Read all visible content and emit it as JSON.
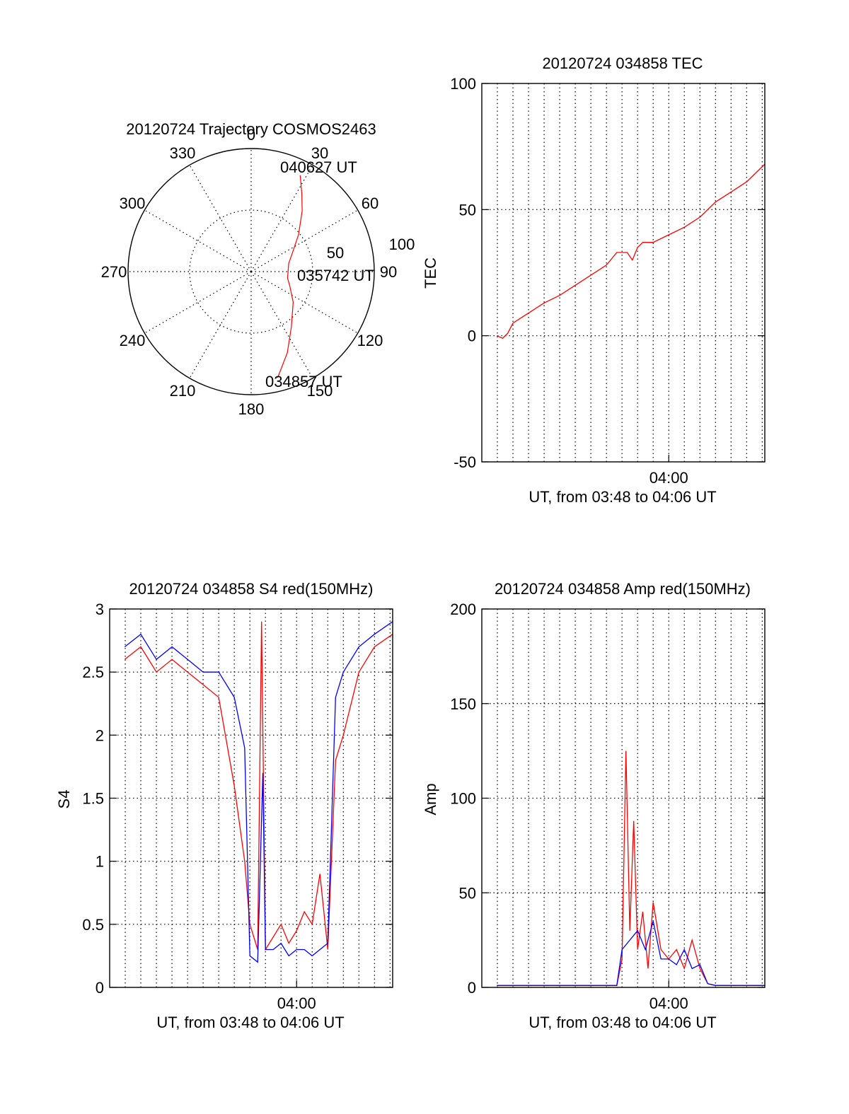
{
  "colors": {
    "red": "#ff0000",
    "blue": "#0000ff",
    "black": "#000000"
  },
  "chart_data": [
    {
      "id": "trajectory",
      "type": "polar",
      "title": "20120724 Trajectory COSMOS2463",
      "angle_labels": [
        "0",
        "30",
        "60",
        "90",
        "120",
        "150",
        "180",
        "210",
        "240",
        "270",
        "300",
        "330"
      ],
      "radial_labels": [
        "50",
        "100"
      ],
      "rlim": [
        0,
        100
      ],
      "grid": true,
      "start_label": "034857 UT",
      "mid_label": "035742 UT",
      "end_label": "040627 UT",
      "series": [
        {
          "color": "#ff0000",
          "points_az_el": [
            [
              166,
              10
            ],
            [
              156,
              25
            ],
            [
              144,
              40
            ],
            [
              126,
              52
            ],
            [
              110,
              60
            ],
            [
              100,
              63
            ],
            [
              90,
              63
            ],
            [
              78,
              62
            ],
            [
              64,
              56
            ],
            [
              52,
              46
            ],
            [
              40,
              32
            ],
            [
              33,
              22
            ],
            [
              27,
              11
            ]
          ]
        }
      ]
    },
    {
      "id": "tec",
      "type": "line",
      "title": "20120724 034858 TEC",
      "xlabel": "UT, from 03:48 to 04:06 UT",
      "ylabel": "TEC",
      "xlim": [
        "03:48:00",
        "04:06:10"
      ],
      "ylim": [
        -50,
        100
      ],
      "xtick_labels": [
        {
          "at": "04:00",
          "text": "04:00"
        }
      ],
      "ytick_labels": [
        "-50",
        "0",
        "50",
        "100"
      ],
      "grid": true,
      "series": [
        {
          "color": "#ff0000",
          "x": [
            "03:48:58",
            "03:49:20",
            "03:49:40",
            "03:50:00",
            "03:51:00",
            "03:52:00",
            "03:53:00",
            "03:54:00",
            "03:55:00",
            "03:56:00",
            "03:56:40",
            "03:57:20",
            "03:57:40",
            "03:58:00",
            "03:58:20",
            "03:58:40",
            "03:59:00",
            "04:00:00",
            "04:01:00",
            "04:02:00",
            "04:03:00",
            "04:04:00",
            "04:05:00",
            "04:06:10"
          ],
          "y": [
            0,
            -1,
            1,
            5,
            9,
            13,
            16,
            20,
            24,
            28,
            33,
            33,
            30,
            35,
            37,
            37,
            37,
            40,
            43,
            47,
            53,
            57,
            61,
            68
          ]
        }
      ]
    },
    {
      "id": "s4",
      "type": "line",
      "title": "20120724 034858 S4 red(150MHz)",
      "xlabel": "UT, from 03:48 to 04:06 UT",
      "ylabel": "S4",
      "xlim": [
        "03:48:00",
        "04:06:10"
      ],
      "ylim": [
        0,
        3
      ],
      "xtick_labels": [
        {
          "at": "04:00",
          "text": "04:00"
        }
      ],
      "ytick_labels": [
        "0",
        "0.5",
        "1",
        "1.5",
        "2",
        "2.5",
        "3"
      ],
      "grid": true,
      "series": [
        {
          "color": "#ff0000",
          "x": [
            "03:48:58",
            "03:50:00",
            "03:51:00",
            "03:52:00",
            "03:53:00",
            "03:54:00",
            "03:55:00",
            "03:56:00",
            "03:56:40",
            "03:57:00",
            "03:57:30",
            "03:57:45",
            "03:58:00",
            "03:58:30",
            "03:59:00",
            "03:59:30",
            "04:00:00",
            "04:00:30",
            "04:01:00",
            "04:01:30",
            "04:02:00",
            "04:02:30",
            "04:03:00",
            "04:04:00",
            "04:05:00",
            "04:06:10"
          ],
          "y": [
            2.6,
            2.7,
            2.5,
            2.6,
            2.5,
            2.4,
            2.3,
            1.6,
            1.0,
            0.5,
            0.3,
            2.9,
            0.3,
            0.4,
            0.5,
            0.35,
            0.45,
            0.6,
            0.5,
            0.9,
            0.3,
            1.8,
            2.0,
            2.5,
            2.7,
            2.8
          ]
        },
        {
          "color": "#0000ff",
          "x": [
            "03:48:58",
            "03:50:00",
            "03:51:00",
            "03:52:00",
            "03:53:00",
            "03:54:00",
            "03:55:00",
            "03:56:00",
            "03:56:40",
            "03:57:00",
            "03:57:30",
            "03:57:50",
            "03:58:00",
            "03:58:30",
            "03:59:00",
            "03:59:30",
            "04:00:00",
            "04:00:30",
            "04:01:00",
            "04:01:30",
            "04:02:00",
            "04:02:30",
            "04:03:00",
            "04:04:00",
            "04:05:00",
            "04:06:10"
          ],
          "y": [
            2.7,
            2.8,
            2.6,
            2.7,
            2.6,
            2.5,
            2.5,
            2.3,
            1.9,
            0.25,
            0.2,
            1.7,
            0.3,
            0.3,
            0.35,
            0.25,
            0.3,
            0.3,
            0.25,
            0.3,
            0.35,
            2.3,
            2.5,
            2.7,
            2.8,
            2.9
          ]
        }
      ]
    },
    {
      "id": "amp",
      "type": "line",
      "title": "20120724 034858 Amp red(150MHz)",
      "xlabel": "UT, from 03:48 to 04:06 UT",
      "ylabel": "Amp",
      "xlim": [
        "03:48:00",
        "04:06:10"
      ],
      "ylim": [
        0,
        200
      ],
      "xtick_labels": [
        {
          "at": "04:00",
          "text": "04:00"
        }
      ],
      "ytick_labels": [
        "0",
        "50",
        "100",
        "150",
        "200"
      ],
      "grid": true,
      "series": [
        {
          "color": "#ff0000",
          "x": [
            "03:48:58",
            "03:52:00",
            "03:55:00",
            "03:56:40",
            "03:57:00",
            "03:57:15",
            "03:57:30",
            "03:57:45",
            "03:58:00",
            "03:58:20",
            "03:58:40",
            "03:59:00",
            "03:59:30",
            "04:00:00",
            "04:00:30",
            "04:01:00",
            "04:01:30",
            "04:02:00",
            "04:02:30",
            "04:03:00",
            "04:06:10"
          ],
          "y": [
            1,
            1,
            1,
            1,
            15,
            125,
            30,
            88,
            20,
            40,
            10,
            45,
            20,
            15,
            20,
            10,
            25,
            10,
            2,
            1,
            1
          ]
        },
        {
          "color": "#0000ff",
          "x": [
            "03:48:58",
            "03:52:00",
            "03:55:00",
            "03:56:40",
            "03:57:00",
            "03:57:30",
            "03:58:00",
            "03:58:30",
            "03:59:00",
            "03:59:30",
            "04:00:00",
            "04:00:30",
            "04:01:00",
            "04:01:30",
            "04:02:00",
            "04:02:30",
            "04:03:00",
            "04:06:10"
          ],
          "y": [
            1,
            1,
            1,
            1,
            20,
            25,
            30,
            20,
            35,
            15,
            15,
            12,
            20,
            10,
            12,
            2,
            1,
            1
          ]
        }
      ]
    }
  ]
}
